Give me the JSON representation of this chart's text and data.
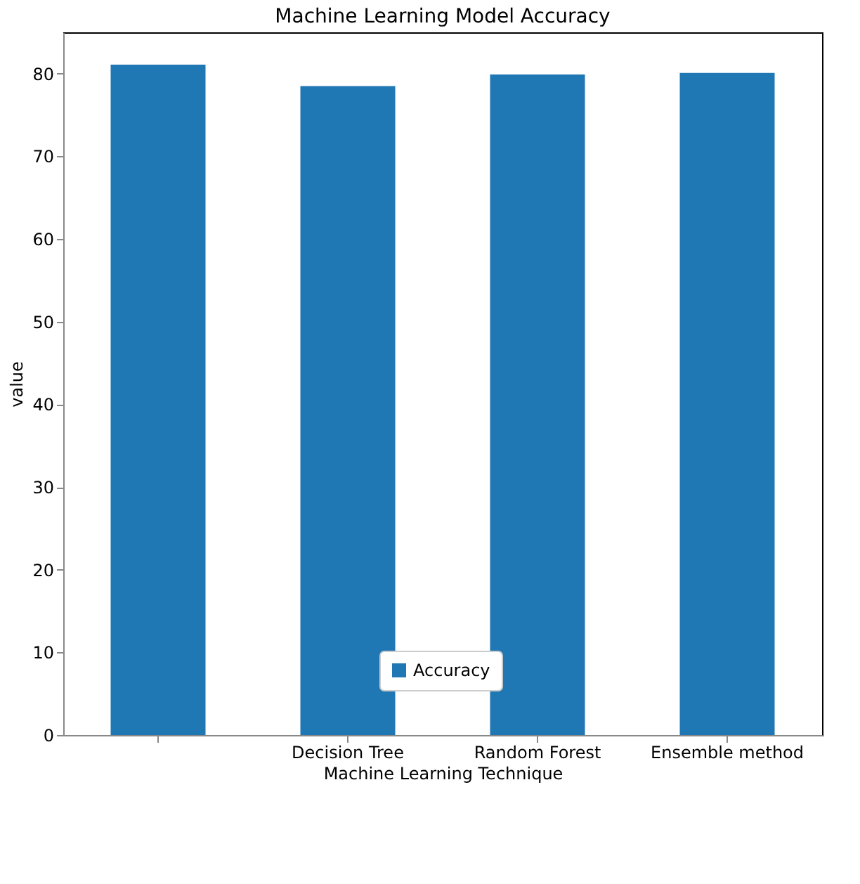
{
  "chart_data": {
    "type": "bar",
    "title": "Machine Learning Model Accuracy",
    "xlabel": "Machine Learning Technique",
    "ylabel": "value",
    "categories": [
      null,
      "Decision Tree",
      "Random Forest",
      "Ensemble method"
    ],
    "series": [
      {
        "name": "Accuracy",
        "color": "#1f77b4",
        "values": [
          81.1,
          78.5,
          79.9,
          80.1
        ]
      }
    ],
    "ylim": [
      0,
      85
    ],
    "yticks": [
      0,
      10,
      20,
      30,
      40,
      50,
      60,
      70,
      80
    ],
    "grid": false,
    "legend": "bottom"
  }
}
